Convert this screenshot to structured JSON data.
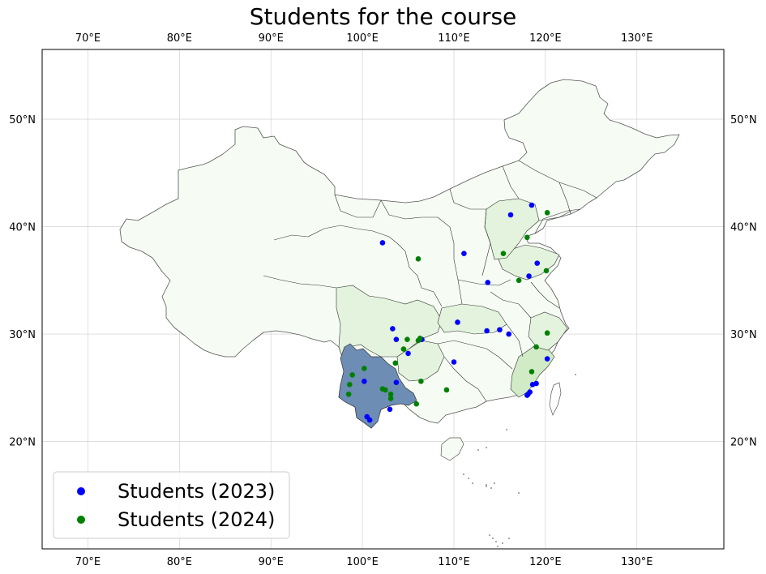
{
  "title": "Students for the course",
  "axes": {
    "lon_ticks": [
      "70°E",
      "80°E",
      "90°E",
      "100°E",
      "110°E",
      "120°E",
      "130°E"
    ],
    "lat_ticks": [
      "20°N",
      "30°N",
      "40°N",
      "50°N"
    ],
    "lon_range": [
      65,
      139.5
    ],
    "lat_range": [
      10,
      56.5
    ],
    "grid": true
  },
  "colors": {
    "province_low": "#f6fbf4",
    "province_mid": "#e3f3dd",
    "province_high": "#d0ebc6",
    "highlight_province": "#6d8db5",
    "border": "#333333",
    "students_2023": "#0000ff",
    "students_2024": "#008000"
  },
  "legend": {
    "placement": "bottom-left",
    "items": [
      {
        "label": "Students (2023)",
        "color": "#0000ff"
      },
      {
        "label": "Students (2024)",
        "color": "#008000"
      }
    ]
  },
  "chart_data": {
    "type": "scatter",
    "title": "Students for the course",
    "series": [
      {
        "name": "Students (2023)",
        "color": "#0000ff",
        "points": [
          [
            102.2,
            38.5
          ],
          [
            111.1,
            37.5
          ],
          [
            116.2,
            41.1
          ],
          [
            118.5,
            42.0
          ],
          [
            113.7,
            34.8
          ],
          [
            118.2,
            35.4
          ],
          [
            119.1,
            36.6
          ],
          [
            103.3,
            30.5
          ],
          [
            103.7,
            29.5
          ],
          [
            106.5,
            29.5
          ],
          [
            105.0,
            28.2
          ],
          [
            110.4,
            31.1
          ],
          [
            113.6,
            30.3
          ],
          [
            115.0,
            30.4
          ],
          [
            116.0,
            30.0
          ],
          [
            120.2,
            27.7
          ],
          [
            110.0,
            27.4
          ],
          [
            118.6,
            25.3
          ],
          [
            119.0,
            25.4
          ],
          [
            118.3,
            24.6
          ],
          [
            118.1,
            24.4
          ],
          [
            118.0,
            24.3
          ],
          [
            100.2,
            25.6
          ],
          [
            103.7,
            25.5
          ],
          [
            103.0,
            23.0
          ],
          [
            100.5,
            22.3
          ],
          [
            100.8,
            22.0
          ]
        ]
      },
      {
        "name": "Students (2024)",
        "color": "#008000",
        "points": [
          [
            106.1,
            37.0
          ],
          [
            120.2,
            41.3
          ],
          [
            118.0,
            39.0
          ],
          [
            115.4,
            37.5
          ],
          [
            117.1,
            35.0
          ],
          [
            120.1,
            35.9
          ],
          [
            104.9,
            29.5
          ],
          [
            106.1,
            29.4
          ],
          [
            106.3,
            29.6
          ],
          [
            104.5,
            28.6
          ],
          [
            120.2,
            30.1
          ],
          [
            119.0,
            28.8
          ],
          [
            118.5,
            26.5
          ],
          [
            106.4,
            25.6
          ],
          [
            109.2,
            24.8
          ],
          [
            103.6,
            27.3
          ],
          [
            102.2,
            24.9
          ],
          [
            102.5,
            24.8
          ],
          [
            103.1,
            24.4
          ],
          [
            103.1,
            24.0
          ],
          [
            105.9,
            23.5
          ],
          [
            100.2,
            26.8
          ],
          [
            98.9,
            26.2
          ],
          [
            98.6,
            25.3
          ],
          [
            98.5,
            24.4
          ]
        ]
      }
    ]
  }
}
